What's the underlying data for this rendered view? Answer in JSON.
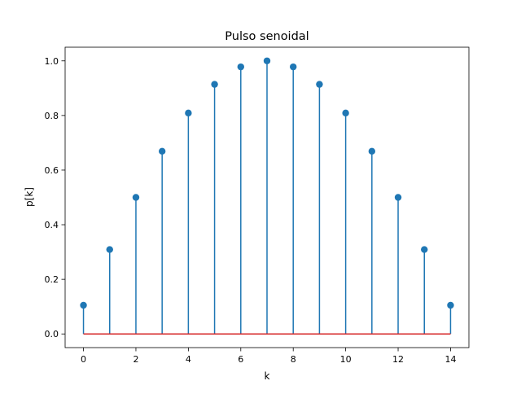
{
  "chart_data": {
    "type": "stem",
    "title": "Pulso senoidal",
    "xlabel": "k",
    "ylabel": "p[k]",
    "xlim": [
      -0.7,
      14.7
    ],
    "ylim": [
      -0.05,
      1.05
    ],
    "xticks": [
      0,
      2,
      4,
      6,
      8,
      10,
      12,
      14
    ],
    "xtick_labels": [
      "0",
      "2",
      "4",
      "6",
      "8",
      "10",
      "12",
      "14"
    ],
    "yticks": [
      0.0,
      0.2,
      0.4,
      0.6,
      0.8,
      1.0
    ],
    "ytick_labels": [
      "0.0",
      "0.2",
      "0.4",
      "0.6",
      "0.8",
      "1.0"
    ],
    "grid": false,
    "colors": {
      "stem": "#1f77b4",
      "marker": "#1f77b4",
      "baseline": "#d62728"
    },
    "x": [
      0,
      1,
      2,
      3,
      4,
      5,
      6,
      7,
      8,
      9,
      10,
      11,
      12,
      13,
      14
    ],
    "y": [
      0.105,
      0.309,
      0.5,
      0.669,
      0.809,
      0.914,
      0.978,
      1.0,
      0.978,
      0.914,
      0.809,
      0.669,
      0.5,
      0.309,
      0.105
    ]
  }
}
